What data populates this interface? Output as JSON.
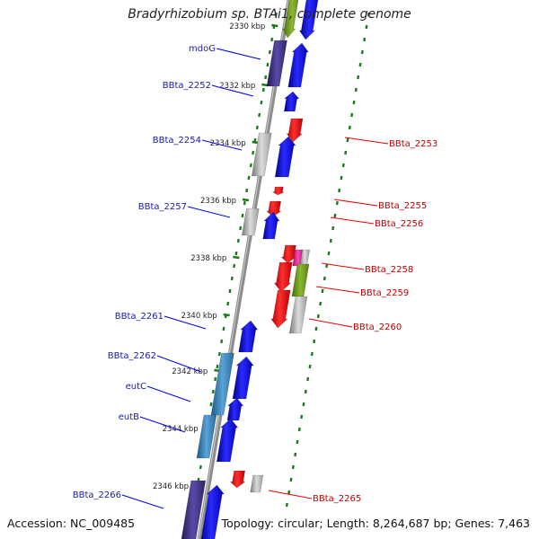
{
  "header": {
    "title": "Bradyrhizobium sp. BTAi1, complete genome"
  },
  "footer": {
    "accession": "Accession: NC_009485",
    "topology": "Topology: circular; Length: 8,264,687 bp; Genes: 7,463"
  },
  "colors": {
    "blue_gene": "#0000ee",
    "red_gene": "#ee0000",
    "left_label": "#1a1aa0",
    "right_label": "#c00000",
    "tick": "#1a7a1a",
    "backbone": "#8c8c8c"
  },
  "ruler": [
    {
      "label": "2330 kbp",
      "partial": true
    },
    {
      "label": "2332 kbp"
    },
    {
      "label": "2334 kbp"
    },
    {
      "label": "2336 kbp"
    },
    {
      "label": "2338 kbp"
    },
    {
      "label": "2340 kbp"
    },
    {
      "label": "2342 kbp"
    },
    {
      "label": "2344 kbp"
    },
    {
      "label": "2346 kbp"
    }
  ],
  "left_genes": [
    {
      "label": "mdoG"
    },
    {
      "label": "BBta_2252"
    },
    {
      "label": "BBta_2254"
    },
    {
      "label": "BBta_2257"
    },
    {
      "label": "BBta_2261"
    },
    {
      "label": "BBta_2262"
    },
    {
      "label": "eutC"
    },
    {
      "label": "eutB"
    },
    {
      "label": "BBta_2266"
    }
  ],
  "right_genes": [
    {
      "label": "BBta_2253"
    },
    {
      "label": "BBta_2255"
    },
    {
      "label": "BBta_2256"
    },
    {
      "label": "BBta_2258"
    },
    {
      "label": "BBta_2259"
    },
    {
      "label": "BBta_2260"
    },
    {
      "label": "BBta_2265"
    }
  ]
}
